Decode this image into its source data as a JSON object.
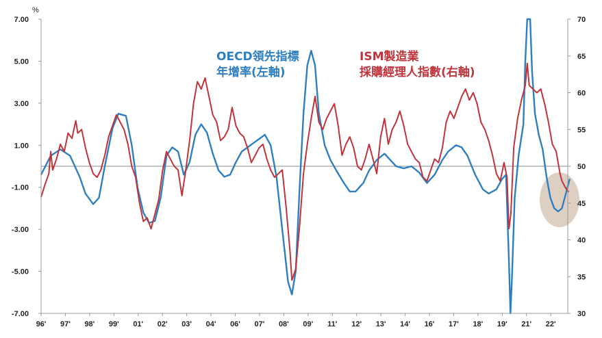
{
  "chart_data": {
    "type": "line",
    "unit_label": "%",
    "x_ticks": [
      "96'",
      "97'",
      "98'",
      "99'",
      "01'",
      "02'",
      "03'",
      "04'",
      "06'",
      "07'",
      "08'",
      "09'",
      "11'",
      "12'",
      "13'",
      "14'",
      "16'",
      "17'",
      "18'",
      "19'",
      "21'",
      "22'"
    ],
    "y_left": {
      "ticks": [
        "7.00",
        "5.00",
        "3.00",
        "1.00",
        "-1.00",
        "-3.00",
        "-5.00",
        "-7.00"
      ],
      "min": -7,
      "max": 7
    },
    "y_right": {
      "ticks": [
        "70",
        "65",
        "60",
        "55",
        "50",
        "45",
        "40",
        "35",
        "30"
      ],
      "min": 30,
      "max": 70
    },
    "x_range": [
      1996.0,
      2023.3
    ],
    "series": [
      {
        "name_lines": [
          "OECD領先指標",
          "年增率(左軸)"
        ],
        "axis": "left",
        "color": "#2E7FC1",
        "points": [
          [
            1996.0,
            -0.4
          ],
          [
            1996.5,
            0.5
          ],
          [
            1997.0,
            0.8
          ],
          [
            1997.5,
            0.5
          ],
          [
            1998.0,
            -0.5
          ],
          [
            1998.3,
            -1.3
          ],
          [
            1998.7,
            -1.8
          ],
          [
            1999.0,
            -1.5
          ],
          [
            1999.3,
            0.0
          ],
          [
            1999.7,
            1.8
          ],
          [
            2000.0,
            2.5
          ],
          [
            2000.4,
            2.4
          ],
          [
            2000.7,
            1.0
          ],
          [
            2001.0,
            -1.0
          ],
          [
            2001.3,
            -2.2
          ],
          [
            2001.6,
            -2.7
          ],
          [
            2001.9,
            -2.6
          ],
          [
            2002.2,
            -1.5
          ],
          [
            2002.5,
            0.5
          ],
          [
            2002.8,
            0.9
          ],
          [
            2003.1,
            0.7
          ],
          [
            2003.4,
            -0.4
          ],
          [
            2003.7,
            0.2
          ],
          [
            2004.0,
            1.5
          ],
          [
            2004.3,
            2.0
          ],
          [
            2004.6,
            1.6
          ],
          [
            2004.9,
            0.6
          ],
          [
            2005.2,
            -0.2
          ],
          [
            2005.5,
            -0.5
          ],
          [
            2005.8,
            -0.4
          ],
          [
            2006.1,
            0.2
          ],
          [
            2006.4,
            0.7
          ],
          [
            2006.7,
            0.9
          ],
          [
            2007.0,
            1.1
          ],
          [
            2007.3,
            1.3
          ],
          [
            2007.6,
            1.5
          ],
          [
            2007.9,
            1.0
          ],
          [
            2008.2,
            -0.5
          ],
          [
            2008.5,
            -3.0
          ],
          [
            2008.8,
            -5.5
          ],
          [
            2009.0,
            -6.1
          ],
          [
            2009.2,
            -5.0
          ],
          [
            2009.4,
            -1.0
          ],
          [
            2009.6,
            2.5
          ],
          [
            2009.8,
            4.8
          ],
          [
            2010.0,
            5.5
          ],
          [
            2010.2,
            4.8
          ],
          [
            2010.4,
            2.5
          ],
          [
            2010.7,
            1.0
          ],
          [
            2011.0,
            0.3
          ],
          [
            2011.3,
            -0.2
          ],
          [
            2011.7,
            -0.8
          ],
          [
            2012.0,
            -1.2
          ],
          [
            2012.3,
            -1.2
          ],
          [
            2012.7,
            -0.8
          ],
          [
            2013.0,
            -0.2
          ],
          [
            2013.4,
            0.3
          ],
          [
            2013.8,
            0.6
          ],
          [
            2014.1,
            0.3
          ],
          [
            2014.4,
            0.0
          ],
          [
            2014.8,
            -0.1
          ],
          [
            2015.2,
            0.0
          ],
          [
            2015.6,
            -0.3
          ],
          [
            2016.0,
            -0.8
          ],
          [
            2016.4,
            -0.4
          ],
          [
            2016.8,
            0.3
          ],
          [
            2017.1,
            0.7
          ],
          [
            2017.5,
            1.0
          ],
          [
            2017.8,
            0.9
          ],
          [
            2018.1,
            0.5
          ],
          [
            2018.5,
            -0.4
          ],
          [
            2018.9,
            -1.1
          ],
          [
            2019.2,
            -1.3
          ],
          [
            2019.6,
            -1.1
          ],
          [
            2019.9,
            -0.6
          ],
          [
            2020.1,
            -0.4
          ],
          [
            2020.25,
            -4.5
          ],
          [
            2020.33,
            -7.0
          ],
          [
            2020.4,
            -5.5
          ],
          [
            2020.55,
            -1.5
          ],
          [
            2020.75,
            0.5
          ],
          [
            2021.0,
            2.0
          ],
          [
            2021.1,
            5.0
          ],
          [
            2021.2,
            7.0
          ],
          [
            2021.35,
            7.0
          ],
          [
            2021.45,
            4.5
          ],
          [
            2021.6,
            2.5
          ],
          [
            2021.8,
            1.5
          ],
          [
            2022.0,
            0.8
          ],
          [
            2022.2,
            -0.5
          ],
          [
            2022.4,
            -1.5
          ],
          [
            2022.6,
            -2.0
          ],
          [
            2022.8,
            -2.15
          ],
          [
            2023.0,
            -2.0
          ],
          [
            2023.2,
            -1.3
          ],
          [
            2023.4,
            -0.6
          ]
        ]
      },
      {
        "name_lines": [
          "ISM製造業",
          "採購經理人指數(右軸)"
        ],
        "axis": "right",
        "color": "#C0333B",
        "points": [
          [
            1996.0,
            45.8
          ],
          [
            1996.2,
            47.5
          ],
          [
            1996.4,
            49.0
          ],
          [
            1996.5,
            52.0
          ],
          [
            1996.6,
            49.5
          ],
          [
            1996.8,
            51.0
          ],
          [
            1997.0,
            53.0
          ],
          [
            1997.2,
            52.0
          ],
          [
            1997.4,
            54.5
          ],
          [
            1997.6,
            53.8
          ],
          [
            1997.8,
            56.2
          ],
          [
            1997.9,
            54.5
          ],
          [
            1998.1,
            55.0
          ],
          [
            1998.3,
            52.5
          ],
          [
            1998.5,
            50.5
          ],
          [
            1998.7,
            49.0
          ],
          [
            1998.9,
            48.5
          ],
          [
            1999.1,
            49.5
          ],
          [
            1999.3,
            51.5
          ],
          [
            1999.5,
            54.0
          ],
          [
            1999.7,
            55.5
          ],
          [
            1999.9,
            57.0
          ],
          [
            2000.1,
            56.0
          ],
          [
            2000.3,
            55.0
          ],
          [
            2000.5,
            53.0
          ],
          [
            2000.7,
            50.0
          ],
          [
            2000.9,
            48.5
          ],
          [
            2001.1,
            45.0
          ],
          [
            2001.3,
            42.5
          ],
          [
            2001.5,
            43.0
          ],
          [
            2001.7,
            41.5
          ],
          [
            2001.9,
            43.5
          ],
          [
            2002.1,
            45.5
          ],
          [
            2002.3,
            49.5
          ],
          [
            2002.5,
            52.0
          ],
          [
            2002.7,
            51.0
          ],
          [
            2002.9,
            50.0
          ],
          [
            2003.1,
            49.5
          ],
          [
            2003.3,
            46.0
          ],
          [
            2003.5,
            49.5
          ],
          [
            2003.7,
            53.5
          ],
          [
            2003.9,
            58.5
          ],
          [
            2004.1,
            61.5
          ],
          [
            2004.3,
            60.5
          ],
          [
            2004.5,
            62.0
          ],
          [
            2004.7,
            59.5
          ],
          [
            2004.9,
            57.0
          ],
          [
            2005.1,
            56.0
          ],
          [
            2005.3,
            53.5
          ],
          [
            2005.5,
            54.0
          ],
          [
            2005.7,
            55.0
          ],
          [
            2005.9,
            58.0
          ],
          [
            2006.1,
            55.5
          ],
          [
            2006.3,
            54.5
          ],
          [
            2006.5,
            54.0
          ],
          [
            2006.7,
            52.5
          ],
          [
            2006.9,
            50.5
          ],
          [
            2007.1,
            51.5
          ],
          [
            2007.3,
            52.5
          ],
          [
            2007.5,
            53.0
          ],
          [
            2007.7,
            51.0
          ],
          [
            2007.9,
            49.5
          ],
          [
            2008.1,
            48.5
          ],
          [
            2008.3,
            49.0
          ],
          [
            2008.5,
            49.5
          ],
          [
            2008.7,
            44.5
          ],
          [
            2008.9,
            38.5
          ],
          [
            2009.0,
            34.5
          ],
          [
            2009.2,
            36.0
          ],
          [
            2009.4,
            42.0
          ],
          [
            2009.6,
            49.0
          ],
          [
            2009.8,
            53.0
          ],
          [
            2010.0,
            56.5
          ],
          [
            2010.2,
            59.5
          ],
          [
            2010.4,
            56.0
          ],
          [
            2010.6,
            55.0
          ],
          [
            2010.8,
            56.5
          ],
          [
            2011.0,
            57.5
          ],
          [
            2011.2,
            58.5
          ],
          [
            2011.4,
            55.5
          ],
          [
            2011.6,
            51.5
          ],
          [
            2011.8,
            53.0
          ],
          [
            2012.0,
            54.0
          ],
          [
            2012.2,
            52.5
          ],
          [
            2012.4,
            50.0
          ],
          [
            2012.6,
            49.5
          ],
          [
            2012.8,
            51.0
          ],
          [
            2013.0,
            53.0
          ],
          [
            2013.2,
            51.0
          ],
          [
            2013.4,
            49.0
          ],
          [
            2013.6,
            54.0
          ],
          [
            2013.8,
            56.5
          ],
          [
            2014.0,
            53.0
          ],
          [
            2014.2,
            55.0
          ],
          [
            2014.4,
            56.0
          ],
          [
            2014.6,
            57.5
          ],
          [
            2014.8,
            55.5
          ],
          [
            2015.0,
            53.0
          ],
          [
            2015.2,
            52.0
          ],
          [
            2015.4,
            51.0
          ],
          [
            2015.6,
            50.5
          ],
          [
            2015.8,
            48.5
          ],
          [
            2016.0,
            48.0
          ],
          [
            2016.2,
            49.5
          ],
          [
            2016.4,
            51.0
          ],
          [
            2016.6,
            50.5
          ],
          [
            2016.8,
            52.5
          ],
          [
            2017.0,
            56.0
          ],
          [
            2017.2,
            57.5
          ],
          [
            2017.4,
            56.5
          ],
          [
            2017.6,
            58.0
          ],
          [
            2017.8,
            59.5
          ],
          [
            2018.0,
            60.5
          ],
          [
            2018.2,
            59.0
          ],
          [
            2018.4,
            60.0
          ],
          [
            2018.6,
            58.5
          ],
          [
            2018.8,
            56.0
          ],
          [
            2019.0,
            55.0
          ],
          [
            2019.2,
            53.5
          ],
          [
            2019.4,
            51.5
          ],
          [
            2019.6,
            49.0
          ],
          [
            2019.8,
            48.0
          ],
          [
            2020.0,
            50.5
          ],
          [
            2020.15,
            48.5
          ],
          [
            2020.25,
            41.5
          ],
          [
            2020.35,
            43.5
          ],
          [
            2020.5,
            52.5
          ],
          [
            2020.7,
            56.5
          ],
          [
            2020.9,
            59.0
          ],
          [
            2021.1,
            61.0
          ],
          [
            2021.2,
            64.0
          ],
          [
            2021.3,
            61.0
          ],
          [
            2021.5,
            60.5
          ],
          [
            2021.7,
            60.0
          ],
          [
            2021.9,
            60.5
          ],
          [
            2022.1,
            58.5
          ],
          [
            2022.3,
            56.0
          ],
          [
            2022.5,
            53.0
          ],
          [
            2022.7,
            52.0
          ],
          [
            2022.9,
            49.0
          ],
          [
            2023.0,
            48.0
          ],
          [
            2023.2,
            47.0
          ],
          [
            2023.35,
            46.5
          ]
        ]
      }
    ]
  }
}
